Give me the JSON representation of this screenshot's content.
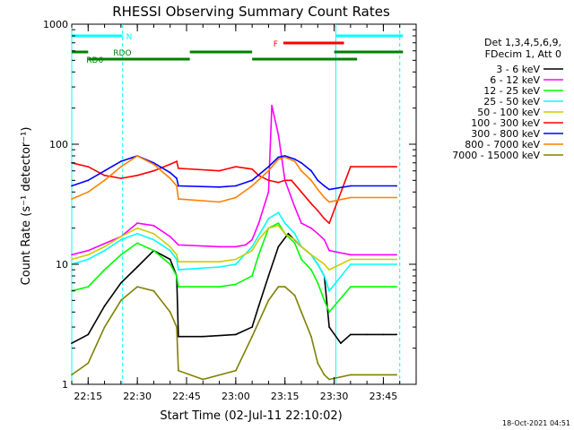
{
  "chart_data": {
    "type": "line",
    "title": "RHESSI Observing Summary Count Rates",
    "xlabel": "Start Time (02-Jul-11 22:10:02)",
    "ylabel": "Count Rate (s⁻¹ detector⁻¹)",
    "yscale": "log",
    "ylim": [
      1,
      1000
    ],
    "xlim_minutes": [
      -5,
      100
    ],
    "x_tick_labels": [
      "22:15",
      "22:30",
      "22:45",
      "23:00",
      "23:15",
      "23:30",
      "23:45"
    ],
    "x_tick_minutes": [
      0,
      15,
      30,
      45,
      60,
      75,
      90
    ],
    "y_tick_labels": [
      "1",
      "10",
      "100",
      "1000"
    ],
    "y_tick_values": [
      1,
      10,
      100,
      1000
    ],
    "timestamp": "18-Oct-2021 04:51",
    "legend_header": [
      "Det 1,3,4,5,6,9,",
      "FDecim 1, Att 0"
    ],
    "series": [
      {
        "name": "3 - 6 keV",
        "color": "#000000",
        "x": [
          -5,
          0,
          5,
          10,
          15,
          20,
          25,
          27,
          27.5,
          35,
          45,
          50,
          52,
          55,
          58,
          61,
          65,
          68,
          70,
          72,
          73.5,
          77,
          80,
          85,
          90,
          94
        ],
        "y": [
          2.2,
          2.6,
          4.5,
          7.0,
          9.5,
          13.0,
          11.0,
          8.0,
          2.5,
          2.5,
          2.6,
          3.0,
          4.5,
          8.0,
          14.0,
          18.0,
          14.0,
          12.0,
          10.0,
          8.0,
          3.0,
          2.2,
          2.6,
          2.6,
          2.6,
          2.6
        ]
      },
      {
        "name": "6 - 12 keV",
        "color": "#ff00ff",
        "x": [
          -5,
          0,
          10,
          15,
          20,
          25,
          27,
          27.5,
          40,
          45,
          48,
          50,
          52,
          55,
          56,
          58,
          60,
          63,
          65,
          68,
          70,
          72,
          73.5,
          80,
          94
        ],
        "y": [
          12.0,
          13.0,
          17.0,
          22.0,
          21.0,
          17.0,
          15.0,
          14.5,
          14.0,
          14.0,
          14.5,
          16.0,
          22.0,
          40.0,
          210.0,
          120.0,
          50.0,
          30.0,
          22.0,
          20.0,
          18.0,
          16.0,
          13.0,
          12.0,
          12.0
        ]
      },
      {
        "name": "12 - 25 keV",
        "color": "#00ff00",
        "x": [
          -5,
          0,
          5,
          10,
          15,
          20,
          25,
          27,
          27.5,
          40,
          45,
          50,
          52,
          55,
          58,
          60,
          63,
          65,
          68,
          70,
          72,
          73.5,
          80,
          94
        ],
        "y": [
          6.0,
          6.5,
          9.0,
          12.0,
          15.0,
          13.0,
          10.0,
          8.0,
          6.5,
          6.5,
          6.8,
          8.0,
          12.0,
          20.0,
          22.0,
          18.0,
          15.0,
          11.0,
          9.0,
          7.0,
          5.0,
          4.0,
          6.5,
          6.5
        ]
      },
      {
        "name": "25 - 50 keV",
        "color": "#00ffff",
        "x": [
          -5,
          0,
          5,
          10,
          15,
          20,
          25,
          27,
          27.5,
          40,
          45,
          50,
          55,
          58,
          60,
          63,
          65,
          68,
          70,
          72,
          73.5,
          80,
          94
        ],
        "y": [
          10.0,
          11.0,
          13.0,
          16.0,
          18.0,
          16.0,
          13.0,
          11.0,
          9.0,
          9.5,
          10.0,
          14.0,
          24.0,
          27.0,
          22.0,
          18.0,
          14.0,
          12.0,
          10.0,
          8.0,
          6.0,
          10.0,
          10.0
        ]
      },
      {
        "name": "50 - 100 keV",
        "color": "#cccc00",
        "x": [
          -5,
          0,
          5,
          10,
          15,
          20,
          25,
          27,
          27.5,
          40,
          45,
          50,
          52,
          55,
          58,
          60,
          63,
          65,
          68,
          70,
          72,
          73.5,
          80,
          94
        ],
        "y": [
          11.0,
          12.0,
          14.0,
          17.0,
          20.0,
          18.0,
          14.0,
          12.0,
          10.5,
          10.5,
          11.0,
          13.0,
          16.0,
          20.0,
          21.0,
          18.0,
          16.0,
          14.0,
          12.0,
          11.0,
          10.0,
          9.0,
          11.0,
          11.0
        ]
      },
      {
        "name": "100 - 300 keV",
        "color": "#ff0000",
        "x": [
          -5,
          0,
          5,
          10,
          15,
          20,
          25,
          27,
          27.5,
          40,
          45,
          50,
          52,
          55,
          58,
          60,
          62,
          65,
          68,
          70,
          72,
          73.5,
          80,
          94
        ],
        "y": [
          70.0,
          65.0,
          55.0,
          52.0,
          55.0,
          60.0,
          68.0,
          72.0,
          63.0,
          60.0,
          65.0,
          62.0,
          55.0,
          50.0,
          48.0,
          50.0,
          50.0,
          40.0,
          32.0,
          28.0,
          24.0,
          22.0,
          65.0,
          65.0
        ]
      },
      {
        "name": "300 - 800 keV",
        "color": "#0000ff",
        "x": [
          -5,
          0,
          5,
          10,
          15,
          20,
          25,
          27,
          27.5,
          40,
          45,
          50,
          55,
          58,
          60,
          63,
          65,
          68,
          70,
          72,
          73.5,
          80,
          94
        ],
        "y": [
          45.0,
          50.0,
          60.0,
          72.0,
          80.0,
          70.0,
          58.0,
          52.0,
          45.0,
          44.0,
          45.0,
          50.0,
          65.0,
          78.0,
          80.0,
          75.0,
          70.0,
          60.0,
          50.0,
          45.0,
          42.0,
          45.0,
          45.0
        ]
      },
      {
        "name": "800 - 7000 keV",
        "color": "#ff8000",
        "x": [
          -5,
          0,
          5,
          10,
          15,
          20,
          25,
          27,
          27.5,
          40,
          45,
          50,
          55,
          58,
          60,
          63,
          65,
          68,
          70,
          72,
          73.5,
          80,
          94
        ],
        "y": [
          35.0,
          40.0,
          50.0,
          65.0,
          80.0,
          68.0,
          52.0,
          45.0,
          35.0,
          33.0,
          36.0,
          45.0,
          60.0,
          75.0,
          78.0,
          72.0,
          60.0,
          50.0,
          42.0,
          36.0,
          33.0,
          36.0,
          36.0
        ]
      },
      {
        "name": "7000 - 15000 keV",
        "color": "#808000",
        "x": [
          -5,
          0,
          5,
          10,
          15,
          20,
          25,
          27,
          27.5,
          35,
          45,
          50,
          55,
          58,
          60,
          63,
          65,
          68,
          70,
          72,
          73.5,
          80,
          94
        ],
        "y": [
          1.2,
          1.5,
          3.0,
          5.0,
          6.5,
          6.0,
          4.0,
          3.0,
          1.3,
          1.1,
          1.3,
          2.5,
          5.0,
          6.5,
          6.5,
          5.5,
          4.0,
          2.5,
          1.5,
          1.2,
          1.1,
          1.2,
          1.2
        ]
      }
    ],
    "status_bars": [
      {
        "label": "N",
        "color": "#00ffff",
        "segments": [
          [
            -5,
            10.5
          ],
          [
            75.5,
            96
          ]
        ]
      },
      {
        "label": "F",
        "color": "#ff0000",
        "segments": [
          [
            59.5,
            78
          ]
        ]
      },
      {
        "label": "RDO",
        "color": "#008000",
        "segments": [
          [
            -5,
            0
          ],
          [
            31,
            50
          ],
          [
            75,
            96
          ]
        ]
      },
      {
        "label": "RD6",
        "color": "#008000",
        "segments": [
          [
            0,
            31
          ],
          [
            50,
            82
          ]
        ]
      }
    ],
    "saa_markers_minutes": [
      -5,
      10.5,
      75.5,
      95
    ]
  }
}
